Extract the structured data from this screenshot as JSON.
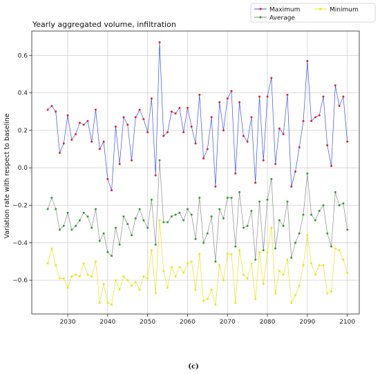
{
  "caption": "(c)",
  "chart_data": {
    "type": "line",
    "title": "Yearly aggregated volume, infiltration",
    "xlabel": "",
    "ylabel": "Variation rate with respect to baseline",
    "xlim": [
      2021,
      2103
    ],
    "ylim": [
      -0.78,
      0.73
    ],
    "xticks": [
      2030,
      2040,
      2050,
      2060,
      2070,
      2080,
      2090,
      2100
    ],
    "yticks": [
      -0.6,
      -0.4,
      -0.2,
      0.0,
      0.2,
      0.4,
      0.6
    ],
    "ytick_labels": [
      "−0.6",
      "−0.4",
      "−0.2",
      "0.0",
      "0.2",
      "0.4",
      "0.6"
    ],
    "grid": true,
    "legend_position": "top-right, outside plot",
    "x": [
      2025,
      2026,
      2027,
      2028,
      2029,
      2030,
      2031,
      2032,
      2033,
      2034,
      2035,
      2036,
      2037,
      2038,
      2039,
      2040,
      2041,
      2042,
      2043,
      2044,
      2045,
      2046,
      2047,
      2048,
      2049,
      2050,
      2051,
      2052,
      2053,
      2054,
      2055,
      2056,
      2057,
      2058,
      2059,
      2060,
      2061,
      2062,
      2063,
      2064,
      2065,
      2066,
      2067,
      2068,
      2069,
      2070,
      2071,
      2072,
      2073,
      2074,
      2075,
      2076,
      2077,
      2078,
      2079,
      2080,
      2081,
      2082,
      2083,
      2084,
      2085,
      2086,
      2087,
      2088,
      2089,
      2090,
      2091,
      2092,
      2093,
      2094,
      2095,
      2096,
      2097,
      2098,
      2099,
      2100
    ],
    "series": [
      {
        "name": "Maximum",
        "line_color": "#3b4fe0",
        "marker_color": "#d62728",
        "values": [
          0.31,
          0.33,
          0.3,
          0.08,
          0.13,
          0.28,
          0.15,
          0.18,
          0.24,
          0.23,
          0.25,
          0.14,
          0.31,
          0.1,
          0.14,
          -0.06,
          -0.12,
          0.22,
          0.02,
          0.27,
          0.23,
          0.04,
          0.27,
          0.31,
          0.26,
          0.19,
          0.37,
          -0.04,
          0.67,
          0.17,
          0.19,
          0.3,
          0.29,
          0.32,
          0.19,
          0.32,
          0.22,
          0.13,
          0.39,
          0.05,
          0.1,
          0.27,
          -0.1,
          0.35,
          0.2,
          0.37,
          0.41,
          -0.03,
          0.35,
          0.17,
          0.14,
          0.27,
          -0.08,
          0.38,
          0.04,
          0.38,
          0.48,
          0.02,
          0.21,
          0.18,
          0.39,
          -0.1,
          -0.02,
          0.11,
          0.25,
          0.57,
          0.25,
          0.27,
          0.28,
          0.38,
          0.12,
          0.01,
          0.44,
          0.33,
          0.38,
          0.14
        ]
      },
      {
        "name": "Average",
        "line_color": "#8c8c8c",
        "marker_color": "#2ca02c",
        "values": [
          -0.22,
          -0.16,
          -0.22,
          -0.33,
          -0.31,
          -0.24,
          -0.33,
          -0.31,
          -0.28,
          -0.24,
          -0.26,
          -0.32,
          -0.22,
          -0.39,
          -0.35,
          -0.45,
          -0.47,
          -0.32,
          -0.41,
          -0.26,
          -0.3,
          -0.36,
          -0.27,
          -0.22,
          -0.28,
          -0.32,
          -0.17,
          -0.41,
          0.04,
          -0.29,
          -0.29,
          -0.26,
          -0.25,
          -0.24,
          -0.28,
          -0.22,
          -0.25,
          -0.38,
          -0.16,
          -0.4,
          -0.35,
          -0.26,
          -0.5,
          -0.22,
          -0.27,
          -0.16,
          -0.16,
          -0.42,
          -0.13,
          -0.32,
          -0.31,
          -0.23,
          -0.49,
          -0.18,
          -0.44,
          -0.17,
          -0.06,
          -0.43,
          -0.28,
          -0.31,
          -0.18,
          -0.48,
          -0.4,
          -0.35,
          -0.25,
          -0.03,
          -0.25,
          -0.28,
          -0.23,
          -0.2,
          -0.35,
          -0.42,
          -0.13,
          -0.2,
          -0.19,
          -0.33
        ]
      },
      {
        "name": "Minimum",
        "line_color": "#e8e51a",
        "marker_color": "#e8e51a",
        "values": [
          -0.51,
          -0.43,
          -0.52,
          -0.59,
          -0.59,
          -0.64,
          -0.58,
          -0.57,
          -0.58,
          -0.51,
          -0.57,
          -0.58,
          -0.5,
          -0.72,
          -0.62,
          -0.72,
          -0.73,
          -0.6,
          -0.65,
          -0.58,
          -0.6,
          -0.63,
          -0.61,
          -0.65,
          -0.58,
          -0.59,
          -0.44,
          -0.67,
          -0.28,
          -0.55,
          -0.64,
          -0.53,
          -0.58,
          -0.53,
          -0.56,
          -0.51,
          -0.5,
          -0.65,
          -0.46,
          -0.71,
          -0.7,
          -0.65,
          -0.73,
          -0.52,
          -0.6,
          -0.46,
          -0.46,
          -0.72,
          -0.44,
          -0.57,
          -0.59,
          -0.51,
          -0.7,
          -0.45,
          -0.62,
          -0.45,
          -0.32,
          -0.67,
          -0.55,
          -0.57,
          -0.49,
          -0.72,
          -0.68,
          -0.63,
          -0.52,
          -0.36,
          -0.51,
          -0.57,
          -0.52,
          -0.52,
          -0.67,
          -0.66,
          -0.43,
          -0.44,
          -0.49,
          -0.56
        ]
      }
    ]
  }
}
